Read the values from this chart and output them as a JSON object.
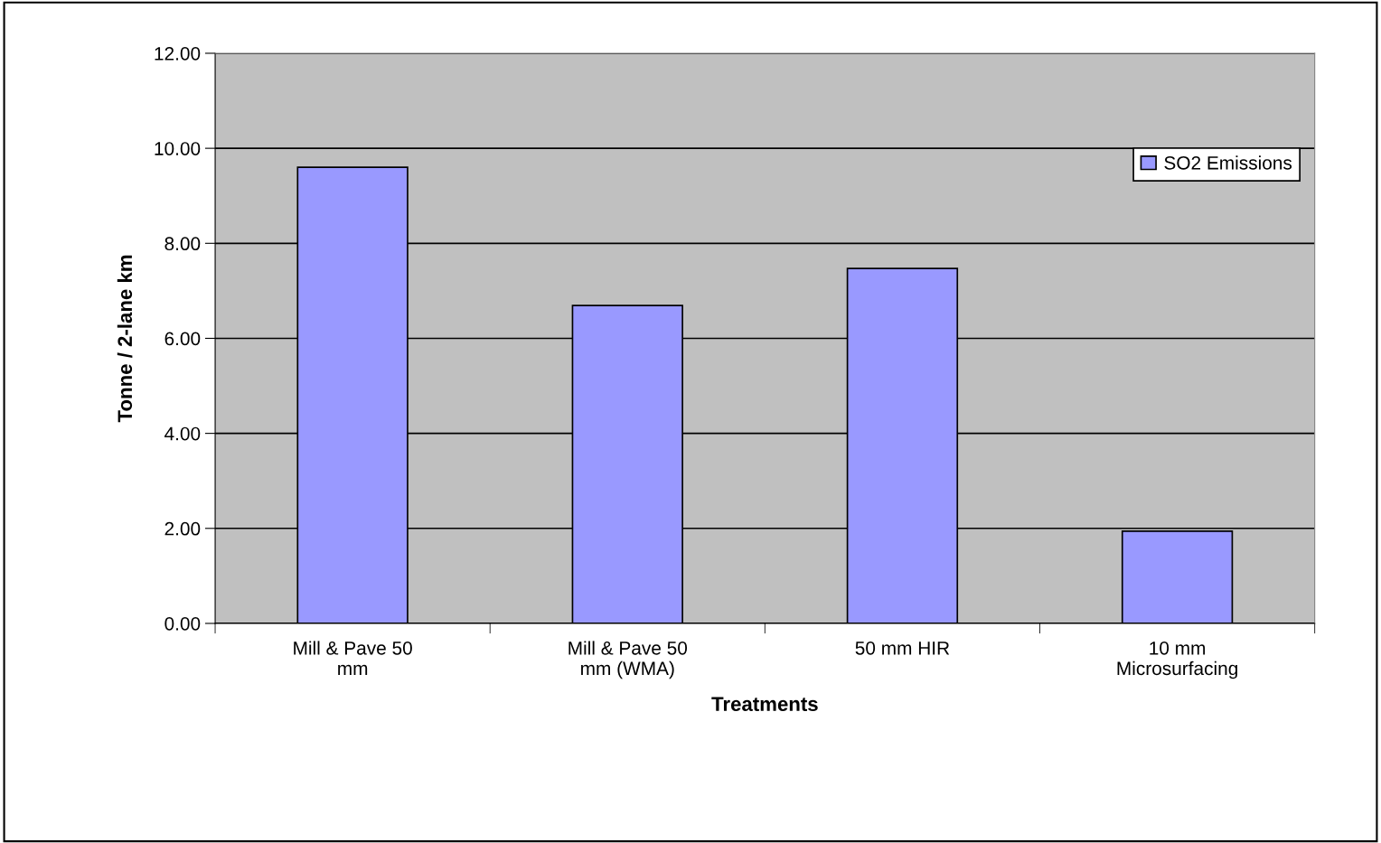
{
  "chart_data": {
    "type": "bar",
    "xlabel": "Treatments",
    "ylabel": "Tonne / 2-lane km",
    "categories": [
      "Mill & Pave 50\nmm",
      "Mill & Pave 50\nmm (WMA)",
      "50 mm HIR",
      "10 mm\nMicrosurfacing"
    ],
    "series": [
      {
        "name": "SO2 Emissions",
        "color": "#9999ff",
        "values": [
          9.6,
          6.69,
          7.47,
          1.94
        ]
      }
    ],
    "ylim": [
      0,
      12
    ],
    "yticks": [
      {
        "value": 0,
        "label": "0.00"
      },
      {
        "value": 2,
        "label": "2.00"
      },
      {
        "value": 4,
        "label": "4.00"
      },
      {
        "value": 6,
        "label": "6.00"
      },
      {
        "value": 8,
        "label": "8.00"
      },
      {
        "value": 10,
        "label": "10.00"
      },
      {
        "value": 12,
        "label": "12.00"
      }
    ],
    "grid": "y",
    "legend": "top right"
  }
}
